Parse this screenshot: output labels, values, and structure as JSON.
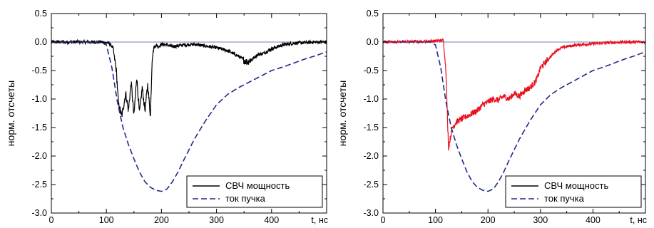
{
  "colors": {
    "beam_current": "#1f2a8a",
    "zero_line": "#7080b8",
    "axis": "#000000",
    "legend_border": "#000000"
  },
  "chart_data": [
    {
      "type": "line",
      "ylabel": "норм. отсчеты",
      "xlabel": "t, нс",
      "xlim": [
        0,
        500
      ],
      "ylim": [
        -3.0,
        0.5
      ],
      "xticks": [
        "0",
        "100",
        "200",
        "300",
        "400"
      ],
      "yticks": [
        "0.5",
        "0.0",
        "-0.5",
        "-1.0",
        "-1.5",
        "-2.0",
        "-2.5",
        "-3.0"
      ],
      "grid": false,
      "legend_position": "bottom-right",
      "reference_line_y": 0.0,
      "series": [
        {
          "name": "СВЧ мощность",
          "color": "#000000",
          "style": "solid",
          "noise": 0.06,
          "x": [
            0,
            90,
            105,
            112,
            118,
            122,
            128,
            135,
            140,
            145,
            150,
            155,
            160,
            165,
            170,
            175,
            180,
            183,
            186,
            190,
            195,
            200,
            210,
            220,
            240,
            260,
            280,
            300,
            320,
            340,
            355,
            365,
            375,
            385,
            400,
            420,
            440,
            460,
            480,
            500
          ],
          "y": [
            0.0,
            0.0,
            -0.02,
            -0.1,
            -0.5,
            -1.1,
            -1.3,
            -0.9,
            -1.2,
            -0.7,
            -1.3,
            -0.6,
            -1.25,
            -0.8,
            -1.2,
            -0.75,
            -1.3,
            -0.3,
            -0.1,
            -0.05,
            -0.08,
            -0.04,
            -0.05,
            -0.08,
            -0.05,
            -0.04,
            -0.07,
            -0.1,
            -0.15,
            -0.25,
            -0.35,
            -0.3,
            -0.22,
            -0.2,
            -0.12,
            -0.05,
            -0.02,
            -0.01,
            0.0,
            0.0
          ]
        },
        {
          "name": "ток пучка",
          "color": "#1f2a8a",
          "style": "dashed",
          "x": [
            0,
            90,
            100,
            110,
            120,
            130,
            140,
            150,
            160,
            170,
            180,
            190,
            200,
            210,
            220,
            230,
            240,
            260,
            280,
            300,
            320,
            340,
            360,
            380,
            400,
            420,
            440,
            460,
            480,
            500
          ],
          "y": [
            0.0,
            0.0,
            -0.05,
            -0.45,
            -1.05,
            -1.5,
            -1.8,
            -2.05,
            -2.28,
            -2.45,
            -2.55,
            -2.6,
            -2.62,
            -2.58,
            -2.45,
            -2.28,
            -2.08,
            -1.7,
            -1.38,
            -1.1,
            -0.92,
            -0.8,
            -0.7,
            -0.6,
            -0.5,
            -0.44,
            -0.37,
            -0.3,
            -0.24,
            -0.17
          ]
        }
      ]
    },
    {
      "type": "line",
      "ylabel": "норм. отсчеты",
      "xlabel": "t, нс",
      "xlim": [
        0,
        500
      ],
      "ylim": [
        -3.0,
        0.5
      ],
      "xticks": [
        "0",
        "100",
        "200",
        "300",
        "400"
      ],
      "yticks": [
        "0.5",
        "0.0",
        "-0.5",
        "-1.0",
        "-1.5",
        "-2.0",
        "-2.5",
        "-3.0"
      ],
      "grid": false,
      "legend_position": "bottom-right",
      "reference_line_y": 0.0,
      "series": [
        {
          "name": "СВЧ мощность",
          "color": "#e8101e",
          "legend_color": "#000000",
          "style": "solid",
          "noise": 0.05,
          "x": [
            0,
            80,
            100,
            115,
            120,
            123,
            125,
            128,
            132,
            140,
            150,
            160,
            170,
            180,
            190,
            200,
            210,
            220,
            230,
            240,
            250,
            260,
            270,
            280,
            290,
            295,
            300,
            310,
            320,
            330,
            340,
            350,
            370,
            400,
            430,
            460,
            500
          ],
          "y": [
            0.0,
            0.01,
            0.02,
            0.03,
            -0.5,
            -1.4,
            -1.85,
            -1.7,
            -1.5,
            -1.4,
            -1.35,
            -1.3,
            -1.25,
            -1.2,
            -1.1,
            -1.05,
            -1.0,
            -1.02,
            -0.95,
            -1.0,
            -0.9,
            -0.95,
            -0.85,
            -0.8,
            -0.7,
            -0.6,
            -0.45,
            -0.35,
            -0.25,
            -0.15,
            -0.1,
            -0.08,
            -0.05,
            -0.03,
            -0.01,
            0.0,
            0.0
          ]
        },
        {
          "name": "ток пучка",
          "color": "#1f2a8a",
          "style": "dashed",
          "x": [
            0,
            90,
            100,
            110,
            120,
            130,
            140,
            150,
            160,
            170,
            180,
            190,
            200,
            210,
            220,
            230,
            240,
            260,
            280,
            300,
            320,
            340,
            360,
            380,
            400,
            420,
            440,
            460,
            480,
            500
          ],
          "y": [
            0.0,
            0.0,
            -0.05,
            -0.45,
            -1.05,
            -1.5,
            -1.8,
            -2.05,
            -2.28,
            -2.45,
            -2.55,
            -2.6,
            -2.62,
            -2.58,
            -2.45,
            -2.28,
            -2.08,
            -1.7,
            -1.38,
            -1.1,
            -0.92,
            -0.8,
            -0.7,
            -0.6,
            -0.5,
            -0.44,
            -0.37,
            -0.3,
            -0.24,
            -0.17
          ]
        }
      ]
    }
  ]
}
